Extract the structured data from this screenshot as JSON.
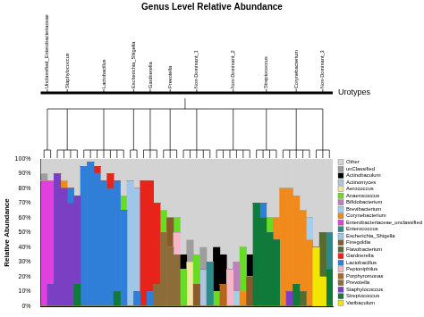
{
  "chart_data": {
    "type": "bar",
    "title": "Genus Level Relative Abundance",
    "y_label": "Relative Abundance",
    "urotypes_title": "Urotypes",
    "urotypes": [
      {
        "label": "Unclassified_Enterobacteriaceae",
        "count": 2
      },
      {
        "label": "Staphylococcus",
        "count": 4
      },
      {
        "label": "Lactobacillus",
        "count": 7
      },
      {
        "label": "Escherichia_Shigella",
        "count": 2
      },
      {
        "label": "Gardnerella",
        "count": 3
      },
      {
        "label": "Prevotella",
        "count": 3
      },
      {
        "label": "Non-Dominant_1",
        "count": 5
      },
      {
        "label": "Non-Dominant_2",
        "count": 6
      },
      {
        "label": "Streptococcus",
        "count": 4
      },
      {
        "label": "Corynebacterium",
        "count": 5
      },
      {
        "label": "Non-Dominant_3",
        "count": 3
      }
    ],
    "categories": [
      null,
      null,
      null,
      null,
      null,
      null,
      null,
      null,
      null,
      null,
      null,
      null,
      null,
      null,
      null,
      null,
      null,
      null,
      null,
      null,
      null,
      null,
      null,
      null,
      null,
      null,
      null,
      null,
      null,
      null,
      null,
      null,
      null,
      null,
      null,
      null,
      null,
      null,
      null,
      null,
      null,
      null,
      null,
      null
    ],
    "series": [
      {
        "name": "Other",
        "color": "#d3d3d3",
        "values": [
          10,
          15,
          10,
          15,
          20,
          25,
          5,
          2,
          5,
          15,
          10,
          15,
          25,
          15,
          20,
          15,
          15,
          30,
          35,
          40,
          40,
          65,
          55,
          65,
          60,
          70,
          60,
          65,
          75,
          70,
          60,
          65,
          30,
          30,
          40,
          40,
          20,
          20,
          25,
          35,
          40,
          60,
          50,
          50
        ]
      },
      {
        "name": "unClassified",
        "color": "#9e9e9e",
        "values": [
          5,
          0,
          0,
          0,
          0,
          0,
          0,
          0,
          0,
          0,
          0,
          0,
          0,
          0,
          0,
          0,
          0,
          0,
          0,
          0,
          0,
          0,
          15,
          0,
          15,
          0,
          0,
          0,
          0,
          0,
          0,
          0,
          0,
          0,
          0,
          0,
          0,
          0,
          0,
          0,
          0,
          0,
          0,
          0
        ]
      },
      {
        "name": "Actinobaculum",
        "color": "#000000",
        "values": [
          0,
          0,
          0,
          0,
          0,
          0,
          0,
          0,
          0,
          0,
          0,
          0,
          0,
          0,
          0,
          0,
          0,
          0,
          0,
          0,
          0,
          10,
          0,
          0,
          0,
          0,
          30,
          20,
          0,
          0,
          0,
          15,
          0,
          0,
          0,
          0,
          0,
          0,
          0,
          0,
          0,
          0,
          0,
          0
        ]
      },
      {
        "name": "Actinomyces",
        "color": "#b0c4de",
        "values": [
          0,
          0,
          0,
          0,
          0,
          0,
          0,
          0,
          0,
          0,
          0,
          0,
          0,
          0,
          0,
          0,
          0,
          0,
          0,
          0,
          0,
          0,
          0,
          0,
          25,
          0,
          0,
          0,
          0,
          0,
          0,
          0,
          0,
          0,
          0,
          0,
          0,
          0,
          0,
          0,
          0,
          0,
          0,
          0
        ]
      },
      {
        "name": "Aerococcus",
        "color": "#f4e4a1",
        "values": [
          0,
          0,
          0,
          0,
          0,
          0,
          0,
          0,
          0,
          0,
          0,
          0,
          0,
          0,
          0,
          0,
          0,
          0,
          0,
          0,
          0,
          0,
          30,
          0,
          0,
          0,
          0,
          0,
          0,
          0,
          0,
          0,
          0,
          0,
          0,
          0,
          0,
          0,
          0,
          0,
          0,
          0,
          0,
          0
        ]
      },
      {
        "name": "Anaerococcus",
        "color": "#66dd22",
        "values": [
          0,
          0,
          0,
          0,
          0,
          0,
          0,
          0,
          0,
          0,
          0,
          0,
          10,
          0,
          0,
          0,
          0,
          0,
          15,
          0,
          10,
          25,
          0,
          20,
          0,
          0,
          10,
          0,
          0,
          0,
          30,
          0,
          0,
          0,
          10,
          0,
          0,
          0,
          0,
          0,
          0,
          0,
          0,
          0
        ]
      },
      {
        "name": "Bifidobacterium",
        "color": "#c080c0",
        "values": [
          0,
          0,
          0,
          0,
          0,
          0,
          0,
          0,
          0,
          0,
          0,
          0,
          0,
          0,
          0,
          0,
          0,
          0,
          0,
          0,
          0,
          0,
          0,
          0,
          0,
          0,
          0,
          0,
          0,
          20,
          0,
          0,
          0,
          0,
          0,
          0,
          0,
          0,
          0,
          0,
          0,
          0,
          0,
          0
        ]
      },
      {
        "name": "Brevibacterium",
        "color": "#a0d0f0",
        "values": [
          0,
          0,
          0,
          0,
          0,
          0,
          0,
          0,
          0,
          0,
          0,
          0,
          0,
          0,
          0,
          0,
          0,
          0,
          0,
          0,
          0,
          0,
          0,
          0,
          0,
          0,
          0,
          0,
          0,
          10,
          0,
          0,
          0,
          0,
          0,
          0,
          0,
          0,
          0,
          0,
          15,
          0,
          0,
          0
        ]
      },
      {
        "name": "Corynebacterium",
        "color": "#f08a1c",
        "values": [
          0,
          0,
          0,
          5,
          0,
          0,
          0,
          0,
          0,
          0,
          0,
          0,
          0,
          0,
          0,
          0,
          0,
          0,
          0,
          0,
          0,
          0,
          0,
          0,
          0,
          0,
          0,
          0,
          0,
          0,
          10,
          0,
          0,
          0,
          0,
          15,
          80,
          70,
          60,
          55,
          45,
          0,
          0,
          0
        ]
      },
      {
        "name": "Enterobacteriaceae_unclassified",
        "color": "#e040e0",
        "values": [
          85,
          70,
          0,
          0,
          0,
          0,
          0,
          0,
          0,
          0,
          0,
          0,
          0,
          0,
          0,
          0,
          0,
          0,
          0,
          0,
          0,
          0,
          0,
          0,
          0,
          0,
          0,
          0,
          0,
          0,
          0,
          0,
          0,
          0,
          0,
          0,
          0,
          0,
          0,
          0,
          0,
          0,
          0,
          0
        ]
      },
      {
        "name": "Enterococcus",
        "color": "#2e8b8b",
        "values": [
          0,
          0,
          0,
          0,
          0,
          0,
          0,
          0,
          0,
          0,
          0,
          0,
          0,
          0,
          0,
          0,
          0,
          0,
          0,
          0,
          0,
          0,
          0,
          0,
          0,
          30,
          0,
          0,
          0,
          0,
          0,
          0,
          0,
          0,
          0,
          0,
          0,
          0,
          0,
          0,
          0,
          0,
          0,
          25
        ]
      },
      {
        "name": "Escherichia_Shigella",
        "color": "#9fc5e8",
        "values": [
          0,
          0,
          0,
          0,
          0,
          0,
          0,
          0,
          0,
          0,
          0,
          0,
          0,
          85,
          70,
          0,
          0,
          0,
          0,
          0,
          0,
          0,
          0,
          0,
          0,
          0,
          0,
          0,
          0,
          0,
          0,
          0,
          0,
          0,
          0,
          0,
          0,
          0,
          0,
          0,
          0,
          0,
          0,
          0
        ]
      },
      {
        "name": "Finegoldia",
        "color": "#8b5a2b",
        "values": [
          0,
          0,
          0,
          0,
          0,
          0,
          0,
          0,
          0,
          0,
          0,
          0,
          0,
          0,
          0,
          0,
          0,
          0,
          0,
          20,
          0,
          0,
          0,
          15,
          0,
          0,
          0,
          0,
          0,
          0,
          0,
          20,
          0,
          0,
          0,
          0,
          0,
          0,
          0,
          0,
          0,
          0,
          0,
          0
        ]
      },
      {
        "name": "Flavobacterium",
        "color": "#556b2f",
        "values": [
          0,
          0,
          0,
          0,
          0,
          0,
          0,
          0,
          0,
          0,
          0,
          0,
          0,
          0,
          0,
          0,
          0,
          0,
          0,
          0,
          0,
          0,
          0,
          0,
          0,
          0,
          0,
          0,
          0,
          0,
          0,
          0,
          0,
          0,
          0,
          0,
          0,
          0,
          0,
          10,
          0,
          0,
          30,
          0
        ]
      },
      {
        "name": "Gardnerella",
        "color": "#e8231a",
        "values": [
          0,
          0,
          0,
          0,
          0,
          0,
          0,
          0,
          5,
          0,
          10,
          0,
          0,
          0,
          0,
          85,
          75,
          55,
          0,
          0,
          0,
          0,
          0,
          0,
          0,
          0,
          0,
          0,
          0,
          0,
          0,
          0,
          0,
          0,
          0,
          0,
          0,
          0,
          0,
          0,
          0,
          0,
          0,
          0
        ]
      },
      {
        "name": "Lactobacillus",
        "color": "#2f7fd8",
        "values": [
          0,
          0,
          0,
          0,
          10,
          0,
          95,
          98,
          90,
          85,
          80,
          75,
          65,
          0,
          10,
          0,
          10,
          0,
          0,
          0,
          0,
          0,
          0,
          0,
          0,
          0,
          0,
          0,
          0,
          0,
          0,
          0,
          0,
          10,
          0,
          0,
          0,
          0,
          0,
          0,
          0,
          0,
          0,
          0
        ]
      },
      {
        "name": "Peptoniphilus",
        "color": "#f5b6c8",
        "values": [
          0,
          0,
          0,
          0,
          0,
          0,
          0,
          0,
          0,
          0,
          0,
          0,
          0,
          0,
          0,
          0,
          0,
          0,
          0,
          0,
          15,
          0,
          0,
          0,
          0,
          0,
          0,
          0,
          25,
          0,
          0,
          0,
          0,
          0,
          0,
          0,
          0,
          0,
          0,
          0,
          0,
          0,
          0,
          0
        ]
      },
      {
        "name": "Porphyromonas",
        "color": "#b5651d",
        "values": [
          0,
          0,
          0,
          0,
          0,
          0,
          0,
          0,
          0,
          0,
          0,
          0,
          0,
          0,
          0,
          0,
          0,
          0,
          0,
          0,
          0,
          0,
          0,
          0,
          0,
          0,
          0,
          15,
          0,
          0,
          0,
          0,
          0,
          0,
          0,
          0,
          0,
          0,
          0,
          0,
          0,
          0,
          0,
          0
        ]
      },
      {
        "name": "Prevotella",
        "color": "#8c6d3a",
        "values": [
          0,
          0,
          0,
          0,
          0,
          0,
          0,
          0,
          0,
          0,
          0,
          0,
          0,
          0,
          0,
          0,
          0,
          15,
          50,
          40,
          35,
          0,
          0,
          0,
          0,
          0,
          0,
          0,
          0,
          0,
          0,
          0,
          0,
          0,
          0,
          0,
          0,
          0,
          0,
          0,
          0,
          0,
          0,
          0
        ]
      },
      {
        "name": "Staphylococcus",
        "color": "#7b3fc4",
        "values": [
          0,
          15,
          90,
          80,
          70,
          60,
          0,
          0,
          0,
          0,
          0,
          0,
          0,
          0,
          0,
          0,
          0,
          0,
          0,
          0,
          0,
          0,
          0,
          0,
          0,
          0,
          0,
          0,
          0,
          0,
          0,
          0,
          0,
          0,
          0,
          0,
          0,
          10,
          0,
          0,
          0,
          0,
          0,
          0
        ]
      },
      {
        "name": "Streptococcus",
        "color": "#0f7a3a",
        "values": [
          0,
          0,
          0,
          0,
          0,
          15,
          0,
          0,
          0,
          0,
          0,
          10,
          0,
          0,
          0,
          0,
          0,
          0,
          0,
          0,
          0,
          0,
          0,
          0,
          0,
          0,
          0,
          0,
          0,
          0,
          0,
          0,
          70,
          60,
          50,
          45,
          0,
          0,
          15,
          0,
          0,
          0,
          0,
          25
        ]
      },
      {
        "name": "Varibaculum",
        "color": "#f2e600",
        "values": [
          0,
          0,
          0,
          0,
          0,
          0,
          0,
          0,
          0,
          0,
          0,
          0,
          0,
          0,
          0,
          0,
          0,
          0,
          0,
          0,
          0,
          0,
          0,
          0,
          0,
          0,
          0,
          0,
          0,
          0,
          0,
          0,
          0,
          0,
          0,
          0,
          0,
          0,
          0,
          0,
          0,
          40,
          20,
          0
        ]
      }
    ],
    "ylim": [
      0,
      100
    ],
    "yticks": [
      {
        "value": 0,
        "label": "0%"
      },
      {
        "value": 10,
        "label": "10%"
      },
      {
        "value": 20,
        "label": "20%"
      },
      {
        "value": 30,
        "label": "30%"
      },
      {
        "value": 40,
        "label": "40%"
      },
      {
        "value": 50,
        "label": "50%"
      },
      {
        "value": 60,
        "label": "60%"
      },
      {
        "value": 70,
        "label": "70%"
      },
      {
        "value": 80,
        "label": "80%"
      },
      {
        "value": 90,
        "label": "90%"
      },
      {
        "value": 100,
        "label": "100%"
      }
    ],
    "stacked": true,
    "grid": false,
    "legend": "right",
    "tick_labels": "y"
  }
}
